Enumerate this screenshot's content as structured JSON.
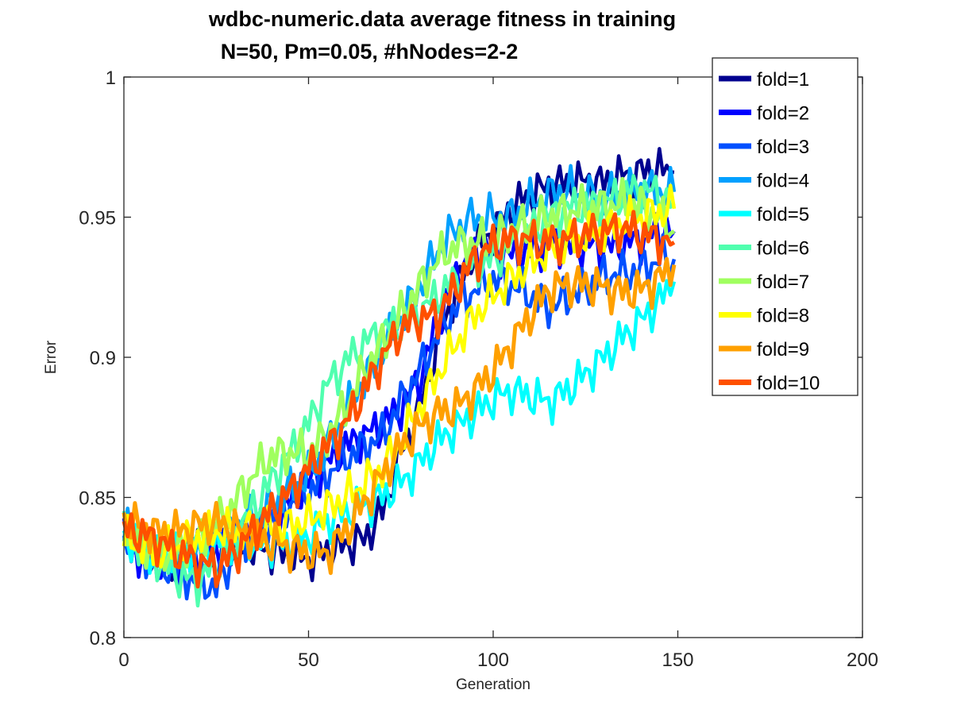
{
  "chart_data": {
    "type": "line",
    "title": "wdbc-numeric.data average fitness in training",
    "subtitle": "N=50, Pm=0.05, #hNodes=2-2",
    "xlabel": "Generation",
    "ylabel": "Error",
    "xlim": [
      0,
      200
    ],
    "ylim": [
      0.8,
      1
    ],
    "xticks": [
      0,
      50,
      100,
      150,
      200
    ],
    "yticks": [
      0.8,
      0.85,
      0.9,
      0.95,
      1
    ],
    "xtick_labels": [
      "0",
      "50",
      "100",
      "150",
      "200"
    ],
    "ytick_labels": [
      "0.8",
      "0.85",
      "0.9",
      "0.95",
      "1"
    ],
    "grid": false,
    "legend_position": "top-right",
    "x": [
      0,
      5,
      10,
      15,
      20,
      25,
      30,
      35,
      40,
      45,
      50,
      55,
      60,
      65,
      70,
      75,
      80,
      85,
      90,
      95,
      100,
      105,
      110,
      115,
      120,
      125,
      130,
      135,
      140,
      145,
      149
    ],
    "series": [
      {
        "name": "fold=1",
        "color": "#00008f",
        "values": [
          0.838,
          0.831,
          0.827,
          0.829,
          0.831,
          0.833,
          0.834,
          0.832,
          0.831,
          0.829,
          0.828,
          0.831,
          0.833,
          0.835,
          0.845,
          0.865,
          0.882,
          0.905,
          0.925,
          0.938,
          0.945,
          0.953,
          0.958,
          0.961,
          0.962,
          0.963,
          0.962,
          0.965,
          0.966,
          0.967,
          0.966
        ]
      },
      {
        "name": "fold=2",
        "color": "#0000ff",
        "values": [
          0.837,
          0.829,
          0.826,
          0.828,
          0.83,
          0.833,
          0.836,
          0.838,
          0.842,
          0.848,
          0.855,
          0.862,
          0.868,
          0.872,
          0.876,
          0.882,
          0.892,
          0.912,
          0.93,
          0.936,
          0.938,
          0.936,
          0.938,
          0.94,
          0.939,
          0.94,
          0.939,
          0.94,
          0.942,
          0.945,
          0.945
        ]
      },
      {
        "name": "fold=3",
        "color": "#0050ff",
        "values": [
          0.838,
          0.83,
          0.826,
          0.823,
          0.82,
          0.818,
          0.83,
          0.836,
          0.842,
          0.848,
          0.852,
          0.858,
          0.864,
          0.868,
          0.872,
          0.884,
          0.895,
          0.908,
          0.918,
          0.924,
          0.928,
          0.926,
          0.922,
          0.918,
          0.921,
          0.925,
          0.929,
          0.93,
          0.931,
          0.935,
          0.935
        ]
      },
      {
        "name": "fold=4",
        "color": "#00a0ff",
        "values": [
          0.839,
          0.833,
          0.829,
          0.83,
          0.833,
          0.836,
          0.839,
          0.843,
          0.847,
          0.853,
          0.858,
          0.868,
          0.88,
          0.892,
          0.902,
          0.914,
          0.925,
          0.938,
          0.946,
          0.95,
          0.95,
          0.95,
          0.955,
          0.958,
          0.96,
          0.958,
          0.957,
          0.959,
          0.96,
          0.959,
          0.959
        ]
      },
      {
        "name": "fold=5",
        "color": "#00ffff",
        "values": [
          0.836,
          0.832,
          0.829,
          0.83,
          0.832,
          0.833,
          0.835,
          0.834,
          0.833,
          0.834,
          0.836,
          0.841,
          0.845,
          0.847,
          0.85,
          0.855,
          0.862,
          0.87,
          0.875,
          0.88,
          0.885,
          0.888,
          0.886,
          0.884,
          0.888,
          0.894,
          0.9,
          0.907,
          0.913,
          0.92,
          0.927
        ]
      },
      {
        "name": "fold=6",
        "color": "#50ffaf",
        "values": [
          0.84,
          0.833,
          0.827,
          0.822,
          0.82,
          0.826,
          0.836,
          0.846,
          0.856,
          0.866,
          0.876,
          0.89,
          0.898,
          0.905,
          0.91,
          0.912,
          0.916,
          0.922,
          0.928,
          0.932,
          0.935,
          0.94,
          0.945,
          0.95,
          0.953,
          0.954,
          0.955,
          0.958,
          0.96,
          0.958,
          0.955
        ]
      },
      {
        "name": "fold=7",
        "color": "#a0ff5f",
        "values": [
          0.838,
          0.833,
          0.83,
          0.831,
          0.834,
          0.84,
          0.848,
          0.858,
          0.865,
          0.866,
          0.866,
          0.872,
          0.882,
          0.895,
          0.905,
          0.915,
          0.925,
          0.935,
          0.94,
          0.941,
          0.942,
          0.945,
          0.948,
          0.95,
          0.952,
          0.953,
          0.954,
          0.955,
          0.954,
          0.95,
          0.945
        ]
      },
      {
        "name": "fold=8",
        "color": "#ffff00",
        "values": [
          0.835,
          0.833,
          0.83,
          0.833,
          0.836,
          0.838,
          0.838,
          0.838,
          0.838,
          0.84,
          0.842,
          0.846,
          0.85,
          0.855,
          0.86,
          0.87,
          0.882,
          0.894,
          0.905,
          0.915,
          0.922,
          0.928,
          0.933,
          0.938,
          0.941,
          0.943,
          0.945,
          0.948,
          0.95,
          0.952,
          0.953
        ]
      },
      {
        "name": "fold=9",
        "color": "#ffa000",
        "values": [
          0.841,
          0.84,
          0.837,
          0.838,
          0.84,
          0.841,
          0.839,
          0.836,
          0.834,
          0.832,
          0.83,
          0.83,
          0.838,
          0.848,
          0.858,
          0.868,
          0.875,
          0.88,
          0.882,
          0.888,
          0.895,
          0.905,
          0.915,
          0.924,
          0.926,
          0.926,
          0.925,
          0.923,
          0.924,
          0.928,
          0.933
        ]
      },
      {
        "name": "fold=10",
        "color": "#ff5000",
        "values": [
          0.838,
          0.837,
          0.834,
          0.83,
          0.827,
          0.825,
          0.83,
          0.838,
          0.845,
          0.852,
          0.86,
          0.868,
          0.876,
          0.888,
          0.9,
          0.91,
          0.914,
          0.915,
          0.925,
          0.935,
          0.94,
          0.942,
          0.942,
          0.941,
          0.942,
          0.944,
          0.945,
          0.946,
          0.944,
          0.942,
          0.941
        ]
      }
    ]
  }
}
